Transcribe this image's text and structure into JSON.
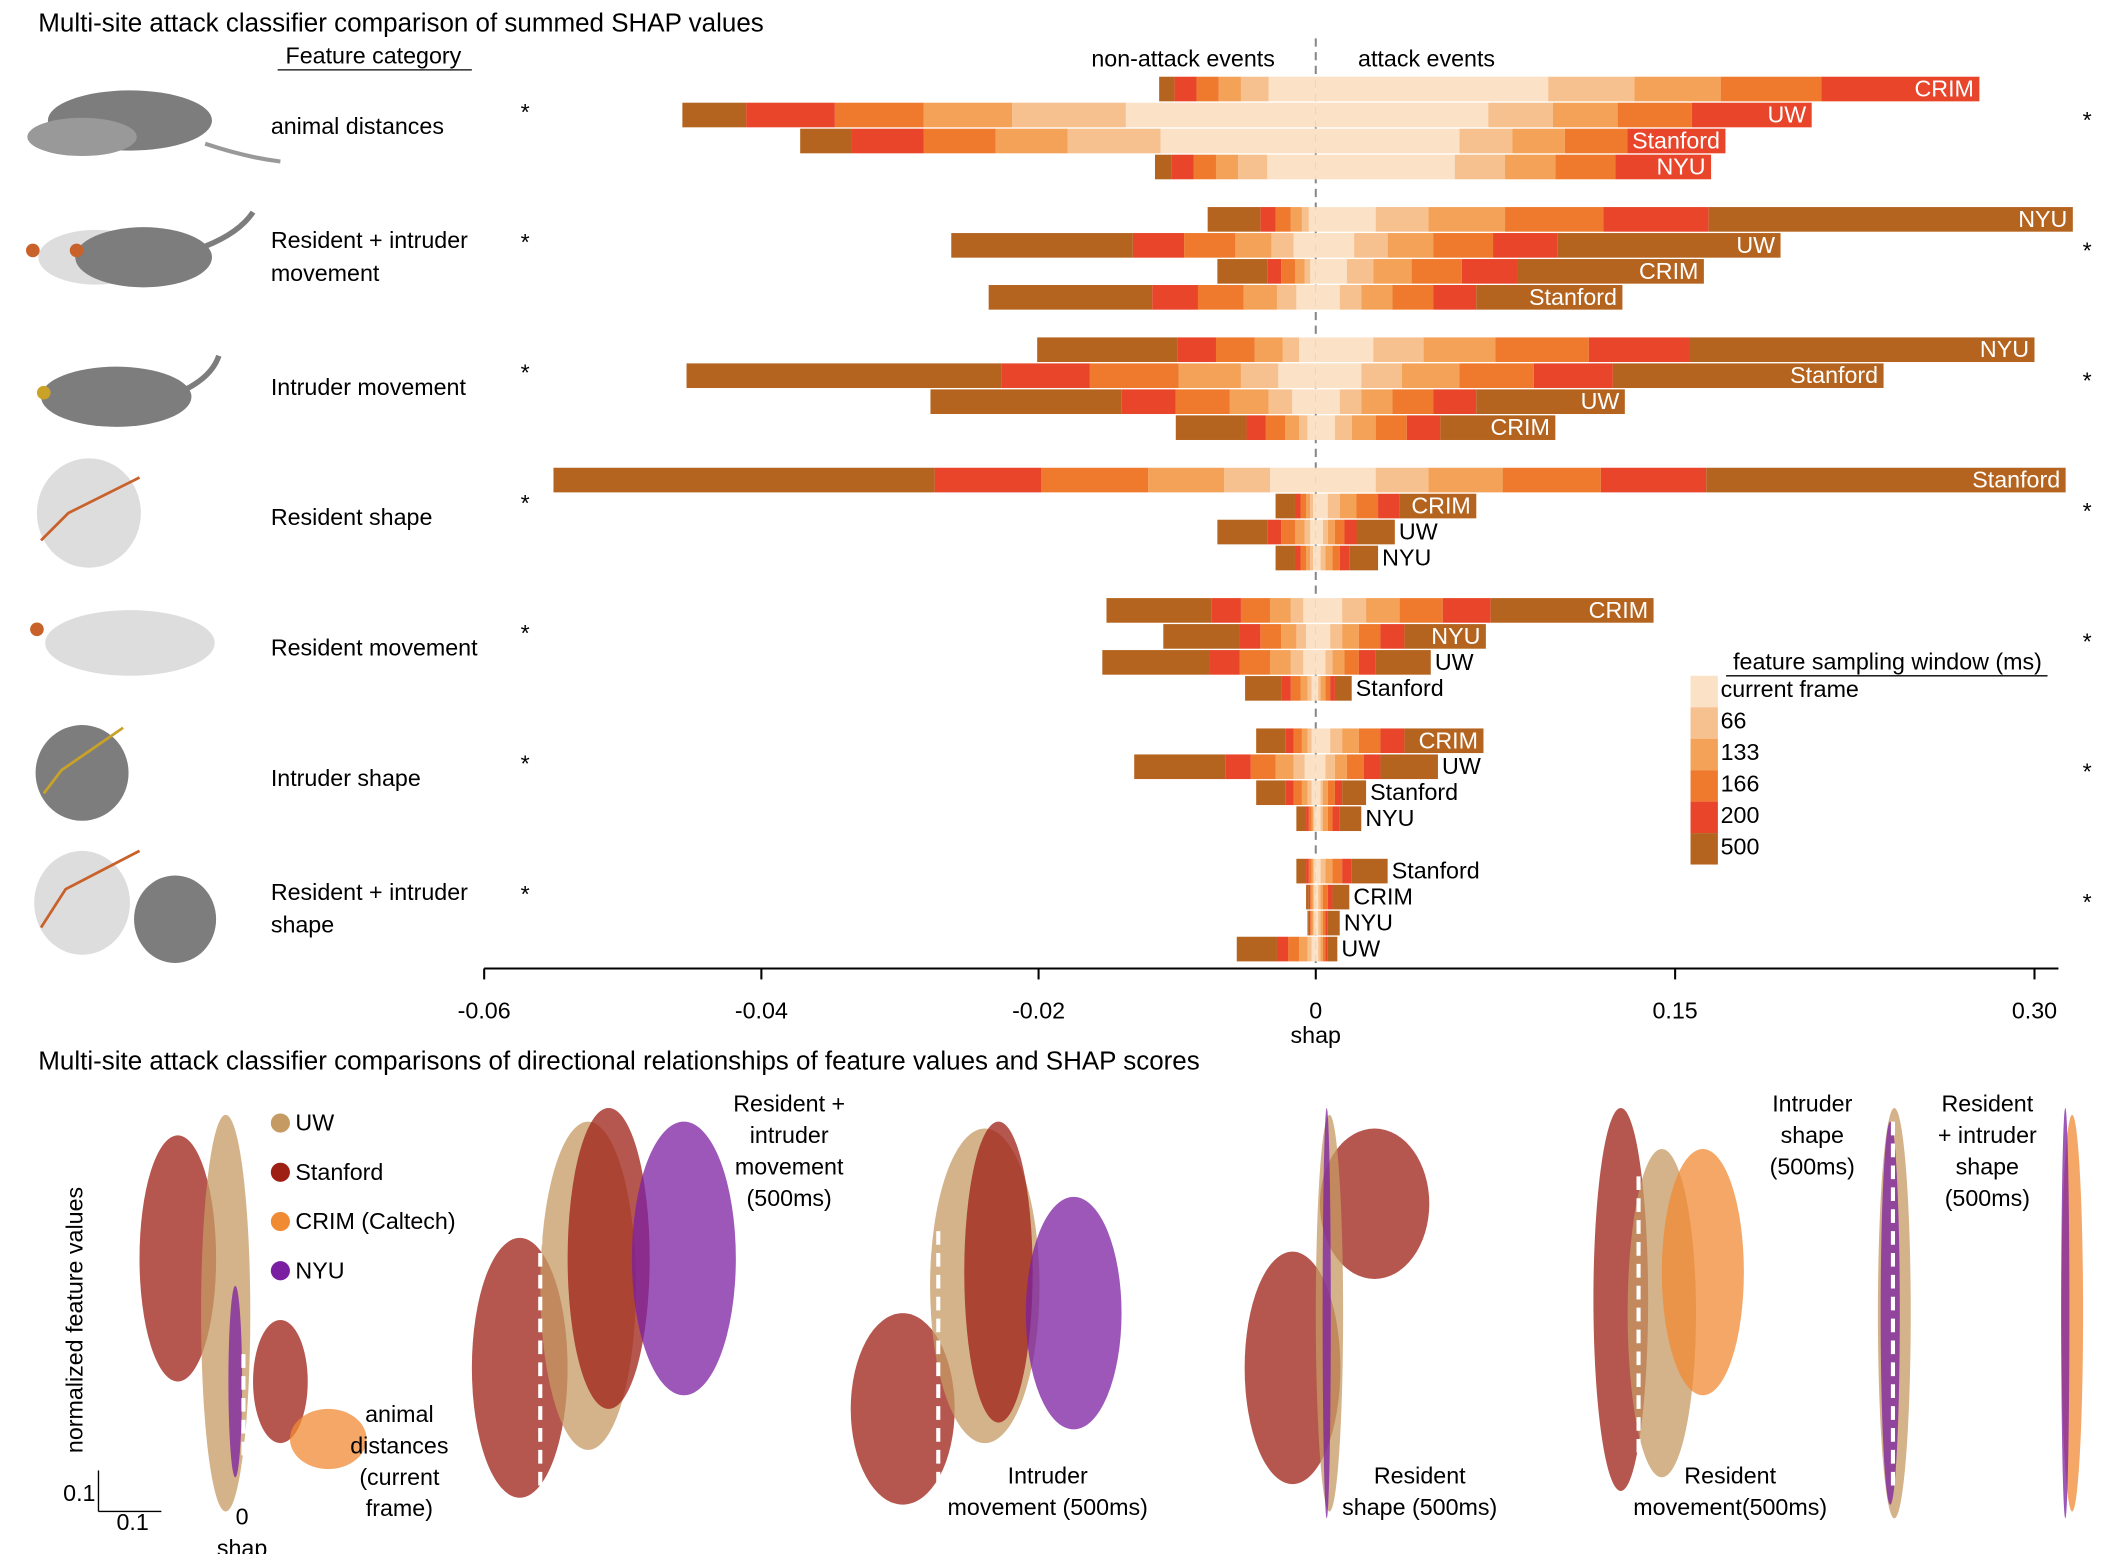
{
  "chart_data": {
    "type": "diverging-stacked-bar",
    "title": "Multi-site attack classifier comparison of summed SHAP values",
    "category_header": "Feature category",
    "negative_header": "non-attack events",
    "positive_header": "attack events",
    "xlabel": "shap",
    "xlim_negative": [
      -0.06,
      0
    ],
    "xlim_positive": [
      0,
      0.31
    ],
    "xticks_negative": [
      -0.06,
      -0.04,
      -0.02,
      0
    ],
    "xticks_positive": [
      0.15,
      {
        "value": 0.3,
        "label": "0.30"
      }
    ],
    "windows": {
      "title": "feature sampling window (ms)",
      "names": [
        "current frame",
        "66",
        "133",
        "166",
        "200",
        "500"
      ],
      "colors": [
        "#fbe2c6",
        "#f7c18f",
        "#f4a257",
        "#ef7a2e",
        "#e8452a",
        "#b5641f"
      ]
    },
    "categories": [
      {
        "label_lines": [
          "animal distances"
        ],
        "left_mark": "*",
        "right_mark": "*",
        "bars": [
          {
            "site": "CRIM",
            "negative": [
              -0.0034,
              -0.002,
              -0.0016,
              -0.0016,
              -0.0016,
              -0.0011
            ],
            "positive": [
              0.097,
              0.036,
              0.036,
              0.042,
              0.066,
              0
            ]
          },
          {
            "site": "UW",
            "negative": [
              -0.0137,
              -0.0082,
              -0.0064,
              -0.0064,
              -0.0064,
              -0.0046
            ],
            "positive": [
              0.072,
              0.027,
              0.027,
              0.031,
              0.05,
              0
            ]
          },
          {
            "site": "Stanford",
            "negative": [
              -0.0112,
              -0.0067,
              -0.0052,
              -0.0052,
              -0.0052,
              -0.0037
            ],
            "positive": [
              0.06,
              0.022,
              0.022,
              0.026,
              0.041,
              0
            ]
          },
          {
            "site": "NYU",
            "negative": [
              -0.0035,
              -0.0021,
              -0.0016,
              -0.0016,
              -0.0016,
              -0.0012
            ],
            "positive": [
              0.058,
              0.021,
              0.021,
              0.025,
              0.04,
              0
            ]
          }
        ]
      },
      {
        "label_lines": [
          "Resident + intruder",
          "movement"
        ],
        "left_mark": "*",
        "right_mark": "*",
        "bars": [
          {
            "site": "NYU",
            "negative": [
              -0.0005,
              -0.0005,
              -0.0008,
              -0.0011,
              -0.0011,
              -0.0038
            ],
            "positive": [
              0.025,
              0.022,
              0.032,
              0.041,
              0.044,
              0.152
            ]
          },
          {
            "site": "UW",
            "negative": [
              -0.0016,
              -0.0016,
              -0.0026,
              -0.0037,
              -0.0037,
              -0.0131
            ],
            "positive": [
              0.016,
              0.014,
              0.019,
              0.025,
              0.027,
              0.093
            ]
          },
          {
            "site": "CRIM",
            "negative": [
              -0.0004,
              -0.0004,
              -0.0007,
              -0.001,
              -0.001,
              -0.0036
            ],
            "positive": [
              0.013,
              0.011,
              0.016,
              0.021,
              0.023,
              0.078
            ]
          },
          {
            "site": "Stanford",
            "negative": [
              -0.0014,
              -0.0014,
              -0.0024,
              -0.0033,
              -0.0033,
              -0.0118
            ],
            "positive": [
              0.01,
              0.009,
              0.013,
              0.017,
              0.018,
              0.061
            ]
          }
        ]
      },
      {
        "label_lines": [
          "Intruder movement"
        ],
        "left_mark": "*",
        "right_mark": "*",
        "bars": [
          {
            "site": "NYU",
            "negative": [
              -0.0012,
              -0.0012,
              -0.002,
              -0.0028,
              -0.0028,
              -0.0101
            ],
            "positive": [
              0.024,
              0.021,
              0.03,
              0.039,
              0.042,
              0.144
            ]
          },
          {
            "site": "Stanford",
            "negative": [
              -0.0027,
              -0.0027,
              -0.0045,
              -0.0064,
              -0.0064,
              -0.0227
            ],
            "positive": [
              0.019,
              0.017,
              0.024,
              0.031,
              0.033,
              0.113
            ]
          },
          {
            "site": "UW",
            "negative": [
              -0.0017,
              -0.0017,
              -0.0028,
              -0.0039,
              -0.0039,
              -0.0138
            ],
            "positive": [
              0.01,
              0.009,
              0.013,
              0.017,
              0.018,
              0.062
            ]
          },
          {
            "site": "CRIM",
            "negative": [
              -0.0006,
              -0.0006,
              -0.001,
              -0.0014,
              -0.0014,
              -0.0051
            ],
            "positive": [
              0.008,
              0.007,
              0.01,
              0.013,
              0.014,
              0.048
            ]
          }
        ]
      },
      {
        "label_lines": [
          "Resident shape"
        ],
        "left_mark": "*",
        "right_mark": "*",
        "bars": [
          {
            "site": "Stanford",
            "negative": [
              -0.0033,
              -0.0033,
              -0.0055,
              -0.0077,
              -0.0077,
              -0.0275
            ],
            "positive": [
              0.025,
              0.022,
              0.031,
              0.041,
              0.044,
              0.15
            ]
          },
          {
            "site": "CRIM",
            "negative": [
              -0.0002,
              -0.0002,
              -0.0003,
              -0.0004,
              -0.0004,
              -0.0014
            ],
            "positive": [
              0.005,
              0.005,
              0.007,
              0.009,
              0.009,
              0.032
            ]
          },
          {
            "site": "UW",
            "negative": [
              -0.0004,
              -0.0004,
              -0.0007,
              -0.001,
              -0.001,
              -0.0036
            ],
            "positive": [
              0.003,
              0.002,
              0.003,
              0.004,
              0.005,
              0.016
            ]
          },
          {
            "site": "NYU",
            "negative": [
              -0.0002,
              -0.0002,
              -0.0003,
              -0.0004,
              -0.0004,
              -0.0014
            ],
            "positive": [
              0.002,
              0.002,
              0.003,
              0.003,
              0.004,
              0.012
            ]
          }
        ]
      },
      {
        "label_lines": [
          "Resident movement"
        ],
        "left_mark": "*",
        "right_mark": "*",
        "bars": [
          {
            "site": "CRIM",
            "negative": [
              -0.0009,
              -0.0009,
              -0.0015,
              -0.0021,
              -0.0021,
              -0.0076
            ],
            "positive": [
              0.011,
              0.01,
              0.014,
              0.018,
              0.02,
              0.068
            ]
          },
          {
            "site": "NYU",
            "negative": [
              -0.0007,
              -0.0007,
              -0.0011,
              -0.0015,
              -0.0015,
              -0.0055
            ],
            "positive": [
              0.006,
              0.005,
              0.007,
              0.009,
              0.01,
              0.034
            ]
          },
          {
            "site": "UW",
            "negative": [
              -0.0009,
              -0.0009,
              -0.0015,
              -0.0022,
              -0.0022,
              -0.0077
            ],
            "positive": [
              0.004,
              0.003,
              0.005,
              0.006,
              0.007,
              0.023
            ]
          },
          {
            "site": "Stanford",
            "negative": [
              -0.0003,
              -0.0003,
              -0.0005,
              -0.0007,
              -0.0007,
              -0.0026
            ],
            "positive": [
              0.001,
              0.001,
              0.002,
              0.002,
              0.002,
              0.007
            ]
          }
        ]
      },
      {
        "label_lines": [
          "Intruder shape"
        ],
        "left_mark": "*",
        "right_mark": "*",
        "bars": [
          {
            "site": "CRIM",
            "negative": [
              -0.0003,
              -0.0003,
              -0.0004,
              -0.0006,
              -0.0006,
              -0.0021
            ],
            "positive": [
              0.006,
              0.005,
              0.007,
              0.009,
              0.01,
              0.033
            ]
          },
          {
            "site": "UW",
            "negative": [
              -0.0008,
              -0.0008,
              -0.0013,
              -0.0018,
              -0.0018,
              -0.0066
            ],
            "positive": [
              0.004,
              0.004,
              0.005,
              0.007,
              0.007,
              0.024
            ]
          },
          {
            "site": "Stanford",
            "negative": [
              -0.0003,
              -0.0003,
              -0.0004,
              -0.0006,
              -0.0006,
              -0.0021
            ],
            "positive": [
              0.002,
              0.001,
              0.002,
              0.003,
              0.003,
              0.01
            ]
          },
          {
            "site": "NYU",
            "negative": [
              -0.0001,
              -0.0001,
              -0.0001,
              -0.0002,
              -0.0002,
              -0.0007
            ],
            "positive": [
              0.002,
              0.001,
              0.002,
              0.002,
              0.003,
              0.009
            ]
          }
        ]
      },
      {
        "label_lines": [
          "Resident + intruder",
          "shape"
        ],
        "left_mark": "*",
        "right_mark": "*",
        "bars": [
          {
            "site": "Stanford",
            "negative": [
              -0.0001,
              -0.0001,
              -0.0001,
              -0.0002,
              -0.0002,
              -0.0007
            ],
            "positive": [
              0.002,
              0.002,
              0.003,
              0.004,
              0.004,
              0.015
            ]
          },
          {
            "site": "CRIM",
            "negative": [
              -0.0001,
              -0.0001,
              -0.0001,
              -0.0001,
              -0.0001,
              -0.0002
            ],
            "positive": [
              0.001,
              0.001,
              0.001,
              0.002,
              0.002,
              0.007
            ]
          },
          {
            "site": "NYU",
            "negative": [
              -0.0001,
              -0.0001,
              -0.0001,
              -0.0001,
              -0.0001,
              -0.0001
            ],
            "positive": [
              0.001,
              0.001,
              0.001,
              0.001,
              0.001,
              0.005
            ]
          },
          {
            "site": "UW",
            "negative": [
              -0.0003,
              -0.0003,
              -0.0006,
              -0.0008,
              -0.0008,
              -0.0029
            ],
            "positive": [
              0.001,
              0.001,
              0.001,
              0.001,
              0.001,
              0.004
            ]
          }
        ]
      }
    ]
  },
  "scatter_figure": {
    "title": "Multi-site attack classifier comparisons of directional relationships of feature values and SHAP scores",
    "ylabel": "normalized feature values",
    "legend": [
      {
        "name": "UW",
        "color": "#c59a63"
      },
      {
        "name": "Stanford",
        "color": "#9e1f14"
      },
      {
        "name": "CRIM (Caltech)",
        "color": "#f08a33"
      },
      {
        "name": "NYU",
        "color": "#7b1fa2"
      }
    ],
    "scale_y_label": "0.1",
    "scale_x_label": "0.1",
    "zero_label": "0",
    "xlabel": "shap",
    "panels": [
      {
        "label_lines": [
          "animal",
          "distances",
          "(current",
          "frame)"
        ]
      },
      {
        "label_lines": [
          "Resident +",
          "intruder",
          "movement",
          "(500ms)"
        ]
      },
      {
        "label_lines": [
          "Intruder",
          "movement (500ms)"
        ]
      },
      {
        "label_lines": [
          "Resident",
          "shape (500ms)"
        ]
      },
      {
        "label_lines": [
          "Resident",
          "movement(500ms)"
        ]
      },
      {
        "label_lines": [
          "Intruder",
          "shape",
          "(500ms)"
        ]
      },
      {
        "label_lines": [
          "Resident",
          "+ intruder",
          "shape",
          "(500ms)"
        ]
      }
    ]
  }
}
